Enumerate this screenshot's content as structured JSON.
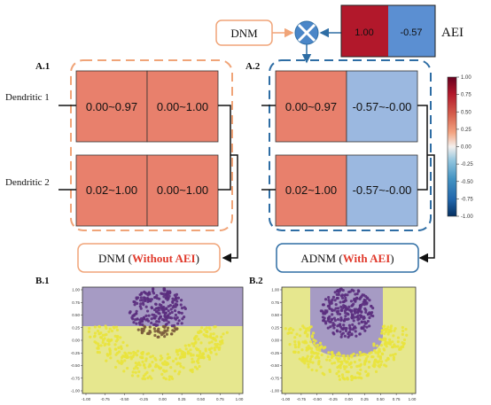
{
  "top": {
    "dnm_label": "DNM",
    "aei_label": "AEI",
    "aei_values": [
      "1.00",
      "-0.57"
    ]
  },
  "panel_a1": {
    "label": "A.1",
    "rows": [
      {
        "name": "Dendritic 1",
        "cells": [
          "0.00~0.97",
          "0.00~1.00"
        ]
      },
      {
        "name": "Dendritic 2",
        "cells": [
          "0.02~1.00",
          "0.00~1.00"
        ]
      }
    ],
    "output_prefix": "DNM (",
    "output_highlight": "Without AEI",
    "output_suffix": ")"
  },
  "panel_a2": {
    "label": "A.2",
    "rows": [
      {
        "cells": [
          "0.00~0.97",
          "-0.57~-0.00"
        ]
      },
      {
        "cells": [
          "0.02~1.00",
          "-0.57~-0.00"
        ]
      }
    ],
    "output_prefix": "ADNM (",
    "output_highlight": "With AEI",
    "output_suffix": ")"
  },
  "colorbar": {
    "ticks": [
      "1.00",
      "0.75",
      "0.50",
      "0.25",
      "0.00",
      "-0.25",
      "-0.50",
      "-0.75",
      "-1.00"
    ]
  },
  "panel_b1": {
    "label": "B.1"
  },
  "panel_b2": {
    "label": "B.2"
  },
  "scatter_axes": {
    "x_ticks": [
      "-1.00",
      "-0.75",
      "-0.50",
      "-0.25",
      "0.00",
      "0.25",
      "0.50",
      "0.75",
      "1.00"
    ],
    "y_ticks": [
      "1.00",
      "0.75",
      "0.50",
      "0.25",
      "0.00",
      "-0.25",
      "-0.50",
      "-0.75",
      "-1.00"
    ]
  },
  "colors": {
    "red_cell": "#e8806c",
    "blue_cell": "#9bb8e0",
    "dark_red": "#b2182b",
    "mid_blue": "#4a7fc8",
    "orange_border": "#f0a478",
    "blue_border": "#2e6da4",
    "highlight": "#e03a2c",
    "region_purple": "#a69bc4",
    "region_yellow": "#e6e78e",
    "pt_purple": "#5b2d7e",
    "pt_yellow": "#e9e33c",
    "pt_brown": "#7a5b3c"
  }
}
